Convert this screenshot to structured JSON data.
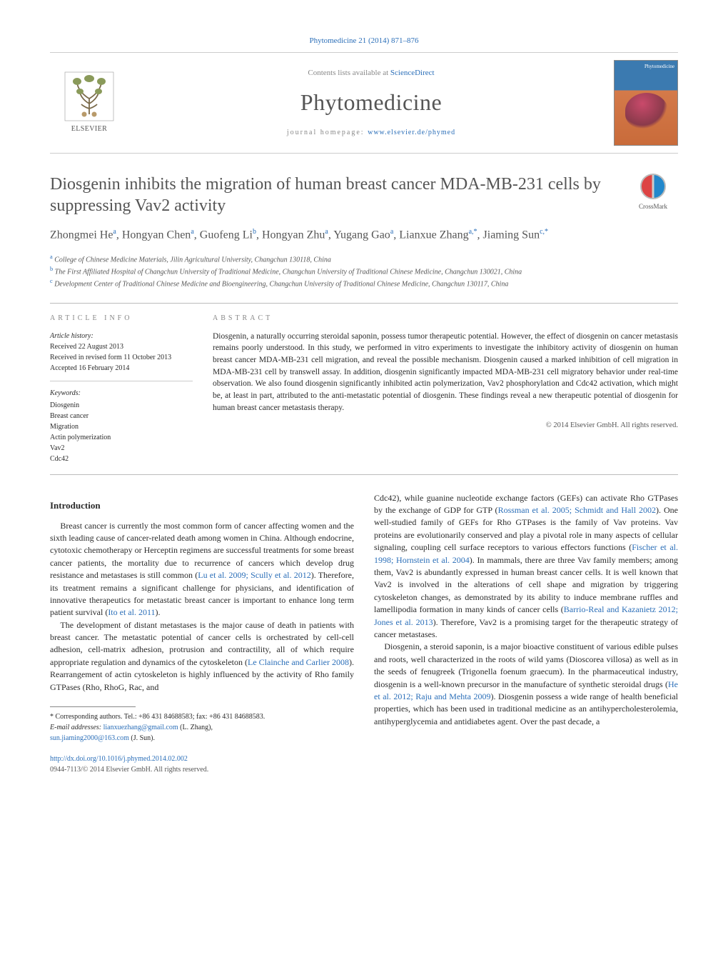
{
  "citation": "Phytomedicine 21 (2014) 871–876",
  "header": {
    "publisher_label": "ELSEVIER",
    "contents_text": "Contents lists available at ",
    "contents_link": "ScienceDirect",
    "journal": "Phytomedicine",
    "homepage_prefix": "journal homepage: ",
    "homepage_url": "www.elsevier.de/phymed",
    "cover_label": "Phytomedicine"
  },
  "crossmark_label": "CrossMark",
  "title": "Diosgenin inhibits the migration of human breast cancer MDA-MB-231 cells by suppressing Vav2 activity",
  "authors_html": "Zhongmei He<sup>a</sup>, Hongyan Chen<sup>a</sup>, Guofeng Li<sup>b</sup>, Hongyan Zhu<sup>a</sup>, Yugang Gao<sup>a</sup>, Lianxue Zhang<sup>a,*</sup>, Jiaming Sun<sup>c,*</sup>",
  "affiliations": [
    {
      "sup": "a",
      "text": "College of Chinese Medicine Materials, Jilin Agricultural University, Changchun 130118, China"
    },
    {
      "sup": "b",
      "text": "The First Affiliated Hospital of Changchun University of Traditional Medicine, Changchun University of Traditional Chinese Medicine, Changchun 130021, China"
    },
    {
      "sup": "c",
      "text": "Development Center of Traditional Chinese Medicine and Bioengineering, Changchun University of Traditional Chinese Medicine, Changchun 130117, China"
    }
  ],
  "info": {
    "label": "article info",
    "history_title": "Article history:",
    "history": [
      "Received 22 August 2013",
      "Received in revised form 11 October 2013",
      "Accepted 16 February 2014"
    ],
    "keywords_title": "Keywords:",
    "keywords": [
      "Diosgenin",
      "Breast cancer",
      "Migration",
      "Actin polymerization",
      "Vav2",
      "Cdc42"
    ]
  },
  "abstract": {
    "label": "abstract",
    "text": "Diosgenin, a naturally occurring steroidal saponin, possess tumor therapeutic potential. However, the effect of diosgenin on cancer metastasis remains poorly understood. In this study, we performed in vitro experiments to investigate the inhibitory activity of diosgenin on human breast cancer MDA-MB-231 cell migration, and reveal the possible mechanism. Diosgenin caused a marked inhibition of cell migration in MDA-MB-231 cell by transwell assay. In addition, diosgenin significantly impacted MDA-MB-231 cell migratory behavior under real-time observation. We also found diosgenin significantly inhibited actin polymerization, Vav2 phosphorylation and Cdc42 activation, which might be, at least in part, attributed to the anti-metastatic potential of diosgenin. These findings reveal a new therapeutic potential of diosgenin for human breast cancer metastasis therapy.",
    "copyright": "© 2014 Elsevier GmbH. All rights reserved."
  },
  "intro_title": "Introduction",
  "body": {
    "p1": "Breast cancer is currently the most common form of cancer affecting women and the sixth leading cause of cancer-related death among women in China. Although endocrine, cytotoxic chemotherapy or Herceptin regimens are successful treatments for some breast cancer patients, the mortality due to recurrence of cancers which develop drug resistance and metastases is still common (",
    "p1_ref": "Lu et al. 2009; Scully et al. 2012",
    "p1b": "). Therefore, its treatment remains a significant challenge for physicians, and identification of innovative therapeutics for metastatic breast cancer is important to enhance long term patient survival (",
    "p1_ref2": "Ito et al. 2011",
    "p1c": ").",
    "p2": "The development of distant metastases is the major cause of death in patients with breast cancer. The metastatic potential of cancer cells is orchestrated by cell-cell adhesion, cell-matrix adhesion, protrusion and contractility, all of which require appropriate regulation and dynamics of the cytoskeleton (",
    "p2_ref": "Le Clainche and Carlier 2008",
    "p2b": "). Rearrangement of actin cytoskeleton is highly influenced by the activity of Rho family GTPases (Rho, RhoG, Rac, and",
    "p3a": "Cdc42), while guanine nucleotide exchange factors (GEFs) can activate Rho GTPases by the exchange of GDP for GTP (",
    "p3_ref": "Rossman et al. 2005; Schmidt and Hall 2002",
    "p3b": "). One well-studied family of GEFs for Rho GTPases is the family of Vav proteins. Vav proteins are evolutionarily conserved and play a pivotal role in many aspects of cellular signaling, coupling cell surface receptors to various effectors functions (",
    "p3_ref2": "Fischer et al. 1998; Hornstein et al. 2004",
    "p3c": "). In mammals, there are three Vav family members; among them, Vav2 is abundantly expressed in human breast cancer cells. It is well known that Vav2 is involved in the alterations of cell shape and migration by triggering cytoskeleton changes, as demonstrated by its ability to induce membrane ruffles and lamellipodia formation in many kinds of cancer cells (",
    "p3_ref3": "Barrio-Real and Kazanietz 2012; Jones et al. 2013",
    "p3d": "). Therefore, Vav2 is a promising target for the therapeutic strategy of cancer metastases.",
    "p4": "Diosgenin, a steroid saponin, is a major bioactive constituent of various edible pulses and roots, well characterized in the roots of wild yams (Dioscorea villosa) as well as in the seeds of fenugreek (Trigonella foenum graecum). In the pharmaceutical industry, diosgenin is a well-known precursor in the manufacture of synthetic steroidal drugs (",
    "p4_ref": "He et al. 2012; Raju and Mehta 2009",
    "p4b": "). Diosgenin possess a wide range of health beneficial properties, which has been used in traditional medicine as an antihypercholesterolemia, antihyperglycemia and antidiabetes agent. Over the past decade, a"
  },
  "footnotes": {
    "corr": "Corresponding authors. Tel.: +86 431 84688583; fax: +86 431 84688583.",
    "email_label": "E-mail addresses: ",
    "email1": "lianxuezhang@gmail.com",
    "email1_who": " (L. Zhang),",
    "email2": "sun.jiaming2000@163.com",
    "email2_who": " (J. Sun)."
  },
  "doi": {
    "url": "http://dx.doi.org/10.1016/j.phymed.2014.02.002",
    "issn_line": "0944-7113/© 2014 Elsevier GmbH. All rights reserved."
  },
  "colors": {
    "link": "#2a6eb8",
    "muted": "#888888",
    "text": "#2a2a2a",
    "cover_top": "#3b7ab0",
    "cover_bottom": "#c96b3a"
  }
}
